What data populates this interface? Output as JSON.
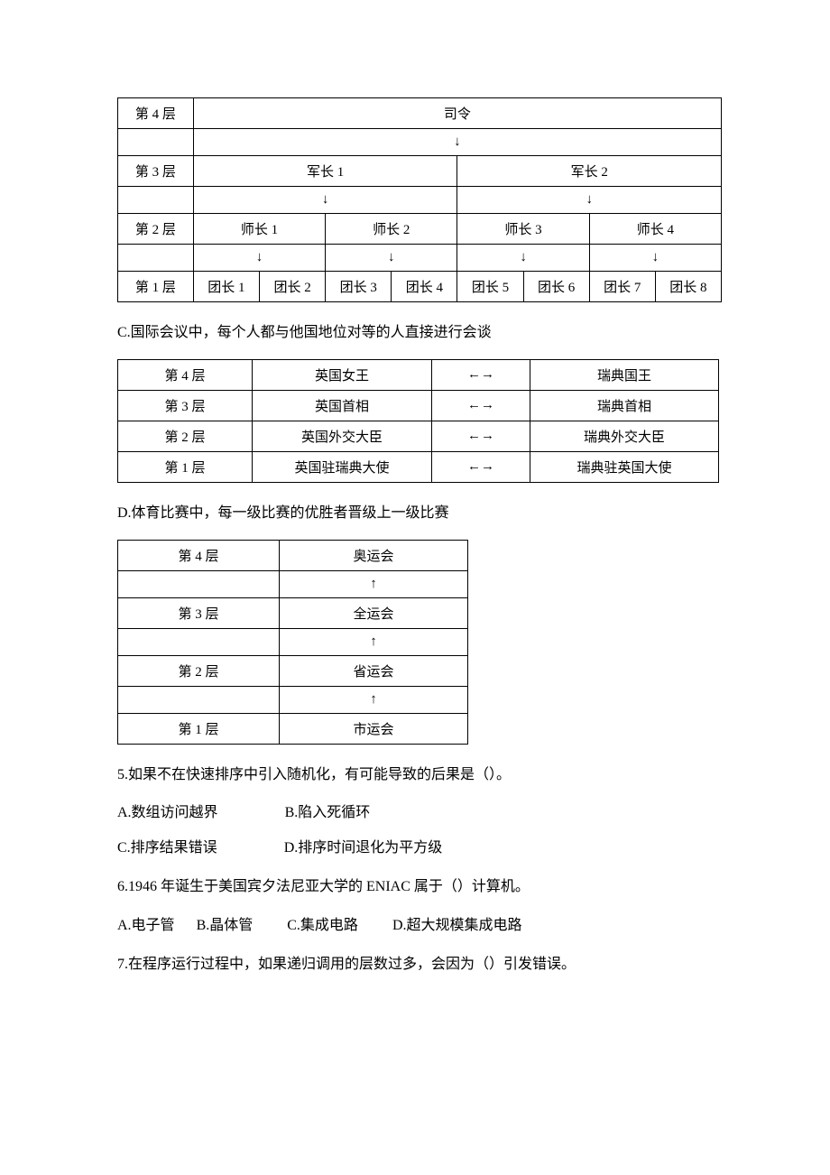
{
  "tableB": {
    "rows": [
      {
        "label": "第 4 层",
        "cells": [
          "司令"
        ],
        "colspan": [
          8
        ]
      },
      {
        "label": "",
        "cells": [
          "↓"
        ],
        "colspan": [
          8
        ],
        "isArrow": true
      },
      {
        "label": "第 3 层",
        "cells": [
          "军长 1",
          "军长 2"
        ],
        "colspan": [
          4,
          4
        ]
      },
      {
        "label": "",
        "cells": [
          "↓",
          "↓"
        ],
        "colspan": [
          4,
          4
        ],
        "isArrow": true
      },
      {
        "label": "第 2 层",
        "cells": [
          "师长 1",
          "师长 2",
          "师长 3",
          "师长 4"
        ],
        "colspan": [
          2,
          2,
          2,
          2
        ]
      },
      {
        "label": "",
        "cells": [
          "↓",
          "↓",
          "↓",
          "↓"
        ],
        "colspan": [
          2,
          2,
          2,
          2
        ],
        "isArrow": true
      },
      {
        "label": "第 1 层",
        "cells": [
          "团长 1",
          "团长 2",
          "团长 3",
          "团长 4",
          "团长 5",
          "团长 6",
          "团长 7",
          "团长 8"
        ],
        "colspan": [
          1,
          1,
          1,
          1,
          1,
          1,
          1,
          1
        ]
      }
    ]
  },
  "textC": "C.国际会议中，每个人都与他国地位对等的人直接进行会谈",
  "tableC": {
    "rows": [
      [
        "第 4 层",
        "英国女王",
        "←→",
        "瑞典国王"
      ],
      [
        "第 3 层",
        "英国首相",
        "←→",
        "瑞典首相"
      ],
      [
        "第 2 层",
        "英国外交大臣",
        "←→",
        "瑞典外交大臣"
      ],
      [
        "第 1 层",
        "英国驻瑞典大使",
        "←→",
        "瑞典驻英国大使"
      ]
    ]
  },
  "textD": "D.体育比赛中，每一级比赛的优胜者晋级上一级比赛",
  "tableD": {
    "rows": [
      [
        "第 4 层",
        "奥运会"
      ],
      [
        "",
        "↑"
      ],
      [
        "第 3 层",
        "全运会"
      ],
      [
        "",
        "↑"
      ],
      [
        "第 2 层",
        "省运会"
      ],
      [
        "",
        "↑"
      ],
      [
        "第 1 层",
        "市运会"
      ]
    ]
  },
  "q5": {
    "stem": "5.如果不在快速排序中引入随机化，有可能导致的后果是（）。",
    "optsLine1": [
      "A.数组访问越界",
      "B.陷入死循环"
    ],
    "optsLine2": [
      "C.排序结果错误",
      "D.排序时间退化为平方级"
    ]
  },
  "q6": {
    "stem": "6.1946 年诞生于美国宾夕法尼亚大学的 ENIAC 属于（）计算机。",
    "opts": [
      "A.电子管",
      "B.晶体管",
      "C.集成电路",
      "D.超大规模集成电路"
    ]
  },
  "q7": {
    "stem": "7.在程序运行过程中，如果递归调用的层数过多，会因为（）引发错误。"
  }
}
